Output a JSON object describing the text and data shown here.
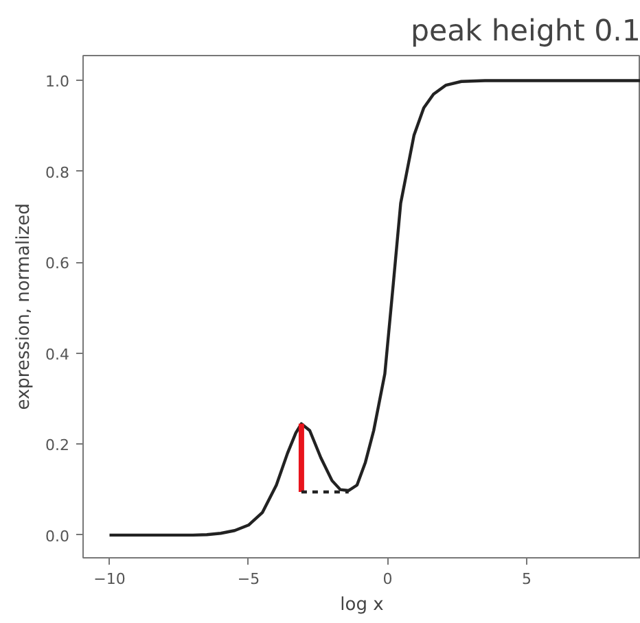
{
  "chart_data": {
    "type": "line",
    "title": "peak height 0.1",
    "xlabel": "log x",
    "ylabel": "expression, normalized",
    "xlim": [
      -10.95,
      9.1
    ],
    "ylim": [
      -0.05,
      1.055
    ],
    "xticks": [
      -10,
      -5,
      0,
      5
    ],
    "yticks": [
      {
        "value": 0,
        "label": "0.0"
      },
      {
        "value": 0.2,
        "label": "0.2"
      },
      {
        "value": 0.4,
        "label": "0.4"
      },
      {
        "value": 0.6,
        "label": "0.6"
      },
      {
        "value": 0.8,
        "label": "0.8"
      },
      {
        "value": 1,
        "label": "1.0"
      }
    ],
    "grid": false,
    "marker": "none",
    "series": [
      {
        "color": "#222222",
        "line_style": "solid",
        "x": [
          -10,
          -9,
          -8,
          -7,
          -6.5,
          -6,
          -5.5,
          -5,
          -4.5,
          -4,
          -3.6,
          -3.3,
          -3.1,
          -2.8,
          -2.4,
          -2,
          -1.7,
          -1.4,
          -1.1,
          -0.8,
          -0.5,
          -0.1,
          0.2,
          0.47,
          0.95,
          1.3,
          1.65,
          2.1,
          2.65,
          3.5,
          5,
          7,
          9.1
        ],
        "values": [
          0,
          0,
          0,
          0,
          0.001,
          0.004,
          0.01,
          0.022,
          0.05,
          0.11,
          0.18,
          0.225,
          0.245,
          0.23,
          0.17,
          0.12,
          0.1,
          0.098,
          0.11,
          0.16,
          0.23,
          0.355,
          0.55,
          0.73,
          0.88,
          0.94,
          0.97,
          0.99,
          0.998,
          1.0,
          1.0,
          1.0,
          1.0
        ]
      },
      {
        "color": "#e8141c",
        "line_style": "solid",
        "x": [
          -3.1,
          -3.1
        ],
        "values": [
          0.095,
          0.245
        ]
      },
      {
        "color": "#222222",
        "line_style": "dashed",
        "x": [
          -3.1,
          -1.4
        ],
        "values": [
          0.095,
          0.095
        ]
      }
    ]
  }
}
